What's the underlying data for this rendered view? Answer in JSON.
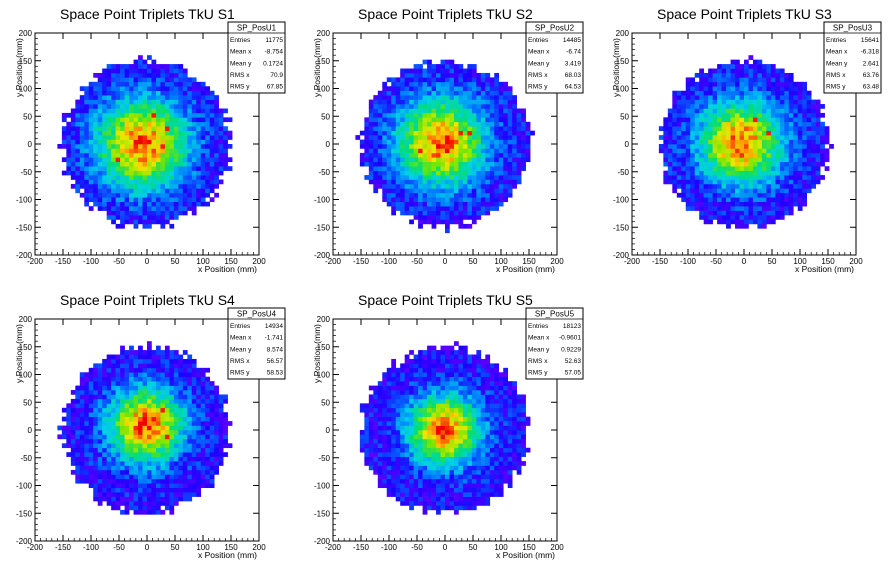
{
  "chart_data": [
    {
      "type": "heatmap",
      "title": "Space Point Triplets TkU S1",
      "xlabel": "x Position (mm)",
      "ylabel": "y Position (mm)",
      "xlim": [
        -200,
        200
      ],
      "ylim": [
        -200,
        200
      ],
      "xticks": [
        -200,
        -150,
        -100,
        -50,
        0,
        50,
        100,
        150,
        200
      ],
      "yticks": [
        -200,
        -150,
        -100,
        -50,
        0,
        50,
        100,
        150,
        200
      ],
      "disk_radius": 150,
      "stats": {
        "name": "SP_PosU1",
        "rows": [
          {
            "label": "Entries",
            "value": "11775"
          },
          {
            "label": "Mean x",
            "value": "-8.754"
          },
          {
            "label": "Mean y",
            "value": "0.1724"
          },
          {
            "label": "RMS x",
            "value": "70.9"
          },
          {
            "label": "RMS y",
            "value": "67.85"
          }
        ]
      }
    },
    {
      "type": "heatmap",
      "title": "Space Point Triplets TkU S2",
      "xlabel": "x Position (mm)",
      "ylabel": "y Position (mm)",
      "xlim": [
        -200,
        200
      ],
      "ylim": [
        -200,
        200
      ],
      "xticks": [
        -200,
        -150,
        -100,
        -50,
        0,
        50,
        100,
        150,
        200
      ],
      "yticks": [
        -200,
        -150,
        -100,
        -50,
        0,
        50,
        100,
        150,
        200
      ],
      "disk_radius": 150,
      "stats": {
        "name": "SP_PosU2",
        "rows": [
          {
            "label": "Entries",
            "value": "14485"
          },
          {
            "label": "Mean x",
            "value": "-6.74"
          },
          {
            "label": "Mean y",
            "value": "3.419"
          },
          {
            "label": "RMS x",
            "value": "68.03"
          },
          {
            "label": "RMS y",
            "value": "64.53"
          }
        ]
      }
    },
    {
      "type": "heatmap",
      "title": "Space Point Triplets TkU S3",
      "xlabel": "x Position (mm)",
      "ylabel": "y Position (mm)",
      "xlim": [
        -200,
        200
      ],
      "ylim": [
        -200,
        200
      ],
      "xticks": [
        -200,
        -150,
        -100,
        -50,
        0,
        50,
        100,
        150,
        200
      ],
      "yticks": [
        -200,
        -150,
        -100,
        -50,
        0,
        50,
        100,
        150,
        200
      ],
      "disk_radius": 150,
      "stats": {
        "name": "SP_PosU3",
        "rows": [
          {
            "label": "Entries",
            "value": "15641"
          },
          {
            "label": "Mean x",
            "value": "-6.318"
          },
          {
            "label": "Mean y",
            "value": "2.641"
          },
          {
            "label": "RMS x",
            "value": "63.76"
          },
          {
            "label": "RMS y",
            "value": "63.48"
          }
        ]
      }
    },
    {
      "type": "heatmap",
      "title": "Space Point Triplets TkU S4",
      "xlabel": "x Position (mm)",
      "ylabel": "y Position (mm)",
      "xlim": [
        -200,
        200
      ],
      "ylim": [
        -200,
        200
      ],
      "xticks": [
        -200,
        -150,
        -100,
        -50,
        0,
        50,
        100,
        150,
        200
      ],
      "yticks": [
        -200,
        -150,
        -100,
        -50,
        0,
        50,
        100,
        150,
        200
      ],
      "disk_radius": 150,
      "stats": {
        "name": "SP_PosU4",
        "rows": [
          {
            "label": "Entries",
            "value": "14934"
          },
          {
            "label": "Mean x",
            "value": "-1.741"
          },
          {
            "label": "Mean y",
            "value": "8.574"
          },
          {
            "label": "RMS x",
            "value": "56.57"
          },
          {
            "label": "RMS y",
            "value": "58.53"
          }
        ]
      }
    },
    {
      "type": "heatmap",
      "title": "Space Point Triplets TkU S5",
      "xlabel": "x Position (mm)",
      "ylabel": "y Position (mm)",
      "xlim": [
        -200,
        200
      ],
      "ylim": [
        -200,
        200
      ],
      "xticks": [
        -200,
        -150,
        -100,
        -50,
        0,
        50,
        100,
        150,
        200
      ],
      "yticks": [
        -200,
        -150,
        -100,
        -50,
        0,
        50,
        100,
        150,
        200
      ],
      "disk_radius": 150,
      "stats": {
        "name": "SP_PosU5",
        "rows": [
          {
            "label": "Entries",
            "value": "18123"
          },
          {
            "label": "Mean x",
            "value": "-0.9601"
          },
          {
            "label": "Mean y",
            "value": "0.9229"
          },
          {
            "label": "RMS x",
            "value": "52.63"
          },
          {
            "label": "RMS y",
            "value": "57.05"
          }
        ]
      }
    }
  ]
}
